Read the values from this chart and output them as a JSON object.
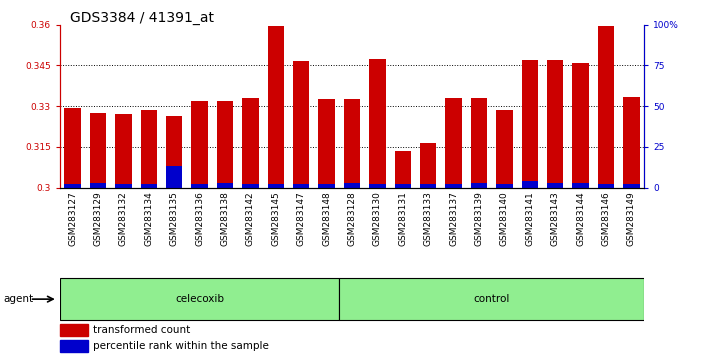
{
  "title": "GDS3384 / 41391_at",
  "samples": [
    "GSM283127",
    "GSM283129",
    "GSM283132",
    "GSM283134",
    "GSM283135",
    "GSM283136",
    "GSM283138",
    "GSM283142",
    "GSM283145",
    "GSM283147",
    "GSM283148",
    "GSM283128",
    "GSM283130",
    "GSM283131",
    "GSM283133",
    "GSM283137",
    "GSM283139",
    "GSM283140",
    "GSM283141",
    "GSM283143",
    "GSM283144",
    "GSM283146",
    "GSM283149"
  ],
  "transformed_count": [
    0.3295,
    0.3275,
    0.327,
    0.3285,
    0.3265,
    0.332,
    0.332,
    0.333,
    0.3595,
    0.3465,
    0.3325,
    0.3325,
    0.3475,
    0.3135,
    0.3165,
    0.333,
    0.333,
    0.3285,
    0.347,
    0.347,
    0.346,
    0.3595,
    0.3335
  ],
  "percentile_rank": [
    2,
    3,
    2,
    2,
    13,
    2,
    3,
    2,
    2,
    2,
    2,
    3,
    2,
    2,
    2,
    2,
    3,
    2,
    4,
    3,
    3,
    2,
    2
  ],
  "celecoxib_count": 11,
  "control_count": 12,
  "ylim_left": [
    0.3,
    0.36
  ],
  "ylim_right": [
    0,
    100
  ],
  "yticks_left": [
    0.3,
    0.315,
    0.33,
    0.345,
    0.36
  ],
  "yticks_right": [
    0,
    25,
    50,
    75,
    100
  ],
  "bar_color_red": "#CC0000",
  "bar_color_blue": "#0000CC",
  "bg_color": "#FFFFFF",
  "agent_label": "agent",
  "group1_label": "celecoxib",
  "group2_label": "control",
  "group_color": "#90EE90",
  "legend_red": "transformed count",
  "legend_blue": "percentile rank within the sample",
  "title_fontsize": 10,
  "tick_fontsize": 6.5,
  "label_fontsize": 7.5
}
